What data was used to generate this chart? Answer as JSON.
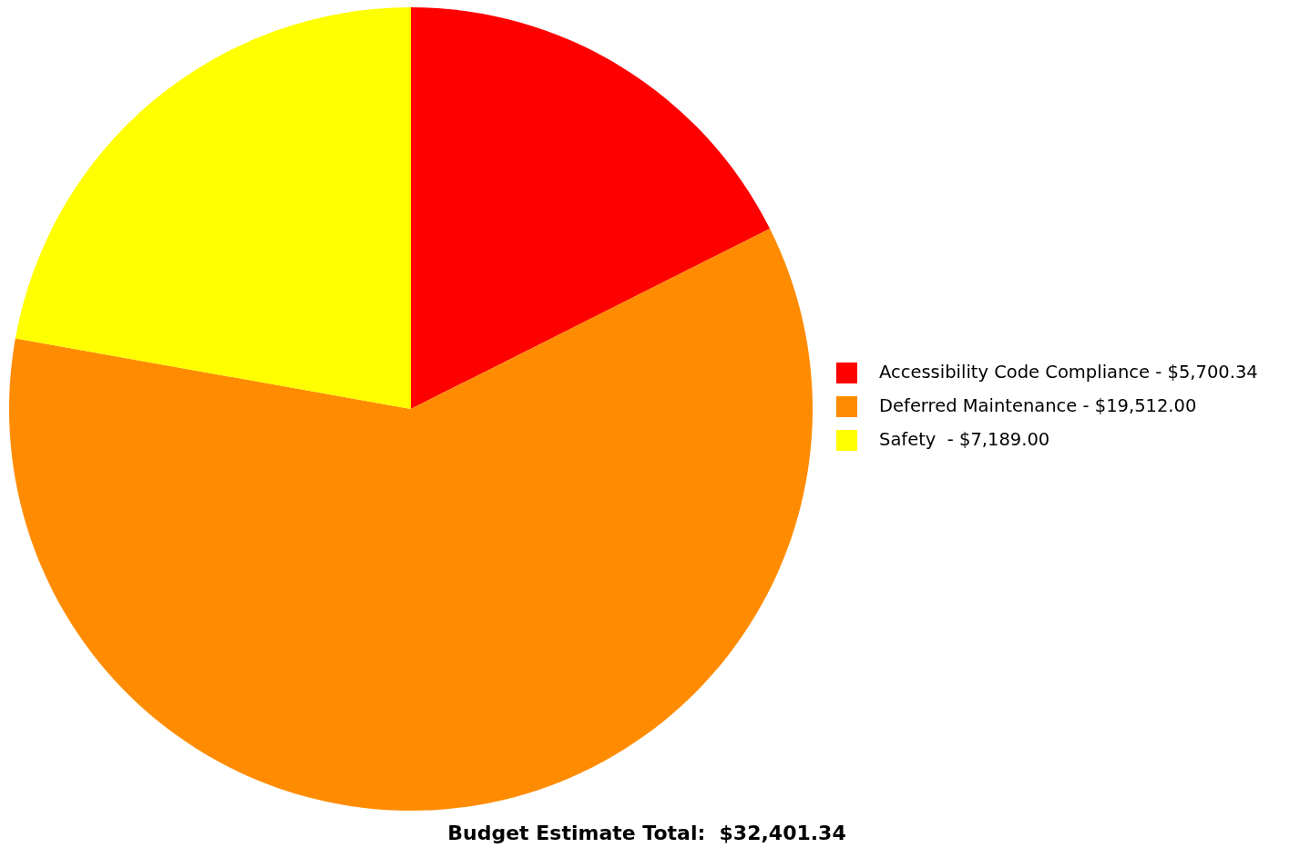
{
  "chart_data": {
    "type": "pie",
    "categories": [
      "Accessibility Code Compliance",
      "Deferred Maintenance",
      "Safety "
    ],
    "values": [
      5700.34,
      19512,
      7189
    ],
    "value_labels": [
      "$5,700.34",
      "$19,512.00",
      "$7,189.00"
    ],
    "colors": [
      "#ff0000",
      "#ff8c00",
      "#ffff00"
    ],
    "legend": "right",
    "annotations": [
      "Budget Estimate Total:  $32,401.34"
    ]
  }
}
